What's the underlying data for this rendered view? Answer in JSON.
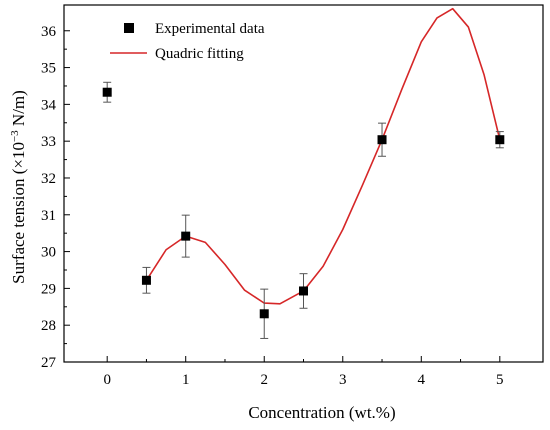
{
  "chart_data": {
    "type": "scatter",
    "title": "",
    "xlabel": "Concentration (wt.%)",
    "ylabel_prefix": "Surface tension (×10",
    "ylabel_exp": "−3",
    "ylabel_suffix": " N/m)",
    "xlim": [
      -0.55,
      5.55
    ],
    "ylim": [
      27,
      36.7
    ],
    "xticks": [
      0,
      1,
      2,
      3,
      4,
      5
    ],
    "yticks": [
      27,
      28,
      29,
      30,
      31,
      32,
      33,
      34,
      35,
      36
    ],
    "grid": false,
    "legend_position": "top-left",
    "series": [
      {
        "name": "Experimental data",
        "kind": "scatter",
        "marker": "square",
        "color": "#000000",
        "x": [
          0,
          0.5,
          1,
          2,
          2.5,
          3.5,
          5
        ],
        "y": [
          34.33,
          29.22,
          30.42,
          28.31,
          28.93,
          33.04,
          33.04
        ],
        "err": [
          0.27,
          0.35,
          0.57,
          0.67,
          0.47,
          0.45,
          0.22
        ]
      },
      {
        "name": "Quadric fitting",
        "kind": "line",
        "color": "#d62728",
        "x": [
          0.5,
          0.75,
          1,
          1.25,
          1.5,
          1.75,
          2,
          2.2,
          2.5,
          2.75,
          3,
          3.25,
          3.5,
          3.75,
          4,
          4.2,
          4.4,
          4.6,
          4.8,
          5
        ],
        "y": [
          29.22,
          30.05,
          30.42,
          30.25,
          29.65,
          28.95,
          28.6,
          28.58,
          28.93,
          29.6,
          30.6,
          31.8,
          33.04,
          34.4,
          35.7,
          36.35,
          36.6,
          36.1,
          34.8,
          33.04
        ]
      }
    ]
  }
}
